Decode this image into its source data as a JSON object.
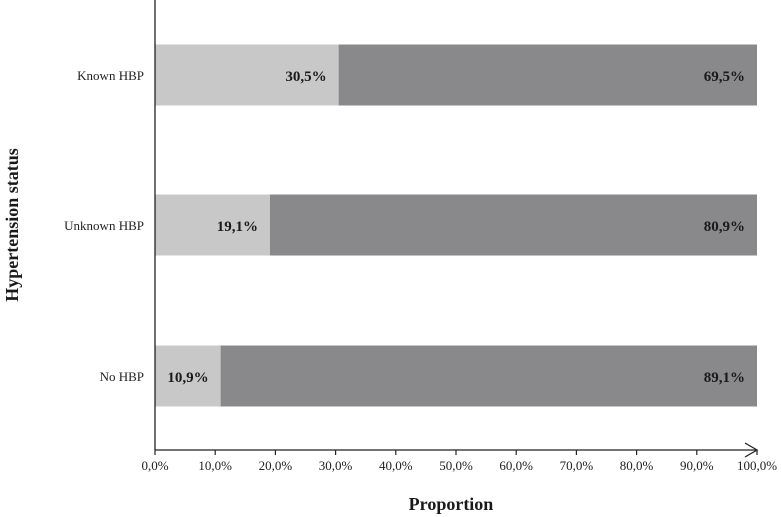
{
  "chart_data": {
    "type": "bar",
    "orientation": "horizontal",
    "stacked": true,
    "categories": [
      "Known HBP",
      "Unknown HBP",
      "No HBP"
    ],
    "series": [
      {
        "values": [
          30.5,
          19.1,
          10.9
        ],
        "labels": [
          "30,5%",
          "19,1%",
          "10,9%"
        ],
        "color": "#c8c8c9"
      },
      {
        "values": [
          69.5,
          80.9,
          89.1
        ],
        "labels": [
          "69,5%",
          "80,9%",
          "89,1%"
        ],
        "color": "#89898b"
      }
    ],
    "xlabel": "Proportion",
    "ylabel": "Hypertension status",
    "xlim": [
      0,
      100
    ],
    "xticks": [
      "0,0%",
      "10,0%",
      "20,0%",
      "30,0%",
      "40,0%",
      "50,0%",
      "60,0%",
      "70,0%",
      "80,0%",
      "90,0%",
      "100,0%"
    ],
    "grid": false,
    "legend": "none"
  }
}
